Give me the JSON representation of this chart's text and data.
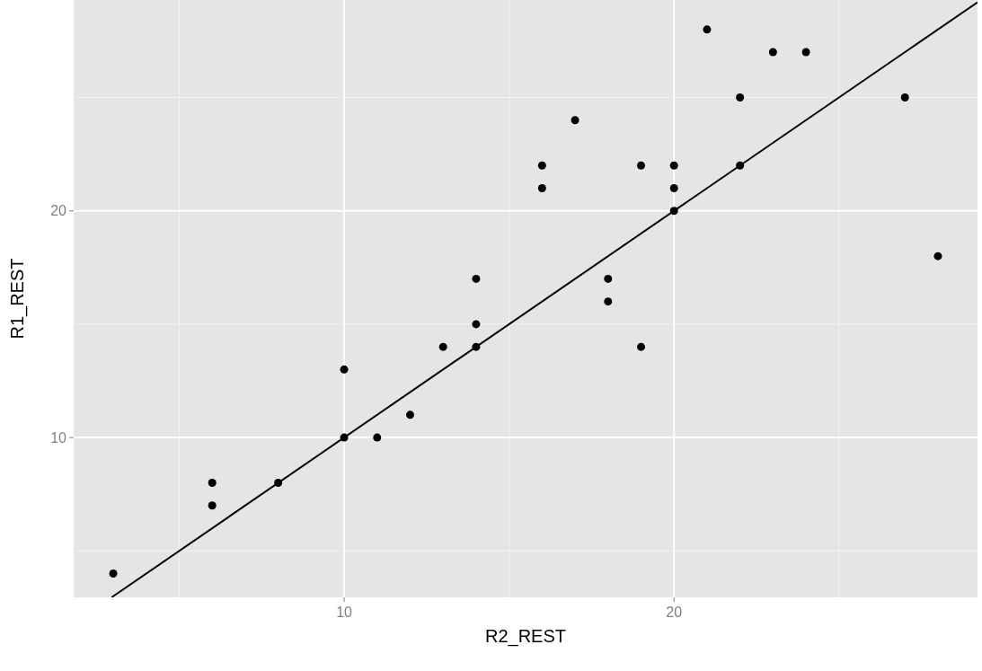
{
  "chart_data": {
    "type": "scatter",
    "xlabel": "R2_REST",
    "ylabel": "R1_REST",
    "xlim": [
      1.8,
      29.2
    ],
    "ylim": [
      2.95,
      29.3
    ],
    "xticks": [
      10,
      20
    ],
    "yticks": [
      10,
      20
    ],
    "grid": true,
    "series": [
      {
        "marker": "circle",
        "color": "#000000",
        "x": [
          3,
          6,
          6,
          8,
          10,
          10,
          11,
          12,
          13,
          14,
          14,
          14,
          16,
          16,
          17,
          18,
          18,
          19,
          19,
          20,
          20,
          20,
          21,
          22,
          22,
          23,
          24,
          27,
          28
        ],
        "values": [
          4,
          8,
          7,
          8,
          13,
          10,
          10,
          11,
          14,
          14,
          15,
          17,
          21,
          22,
          24,
          17,
          16,
          22,
          14,
          22,
          21,
          20,
          28,
          25,
          22,
          27,
          27,
          25,
          18
        ]
      },
      {
        "type": "line",
        "color": "#000000",
        "x": [
          2.95,
          29.2
        ],
        "values": [
          2.95,
          29.2
        ]
      }
    ]
  }
}
